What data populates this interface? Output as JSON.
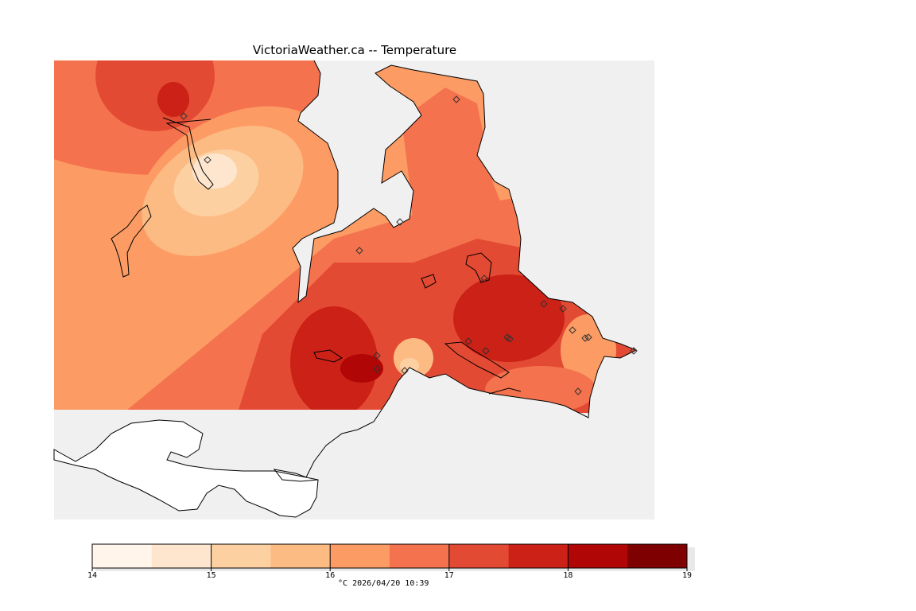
{
  "title": "VictoriaWeather.ca -- Temperature",
  "colors": {
    "water": "#f0f0f0",
    "outside": "#ffffff",
    "t14_145": "#fff5eb",
    "t145_15": "#fee6ce",
    "t15_155": "#fdd0a2",
    "t155_16": "#fdbb84",
    "t16_165": "#fc9c64",
    "t165_17": "#f4734e",
    "t17_175": "#e34a33",
    "t175_18": "#cb2116",
    "t18_185": "#b00605",
    "t185_19": "#7f0000"
  },
  "legend": {
    "ticks": [
      "14",
      "15",
      "16",
      "17",
      "18",
      "19"
    ],
    "unit": "°C",
    "timestamp": "2026/04/20 10:39"
  }
}
